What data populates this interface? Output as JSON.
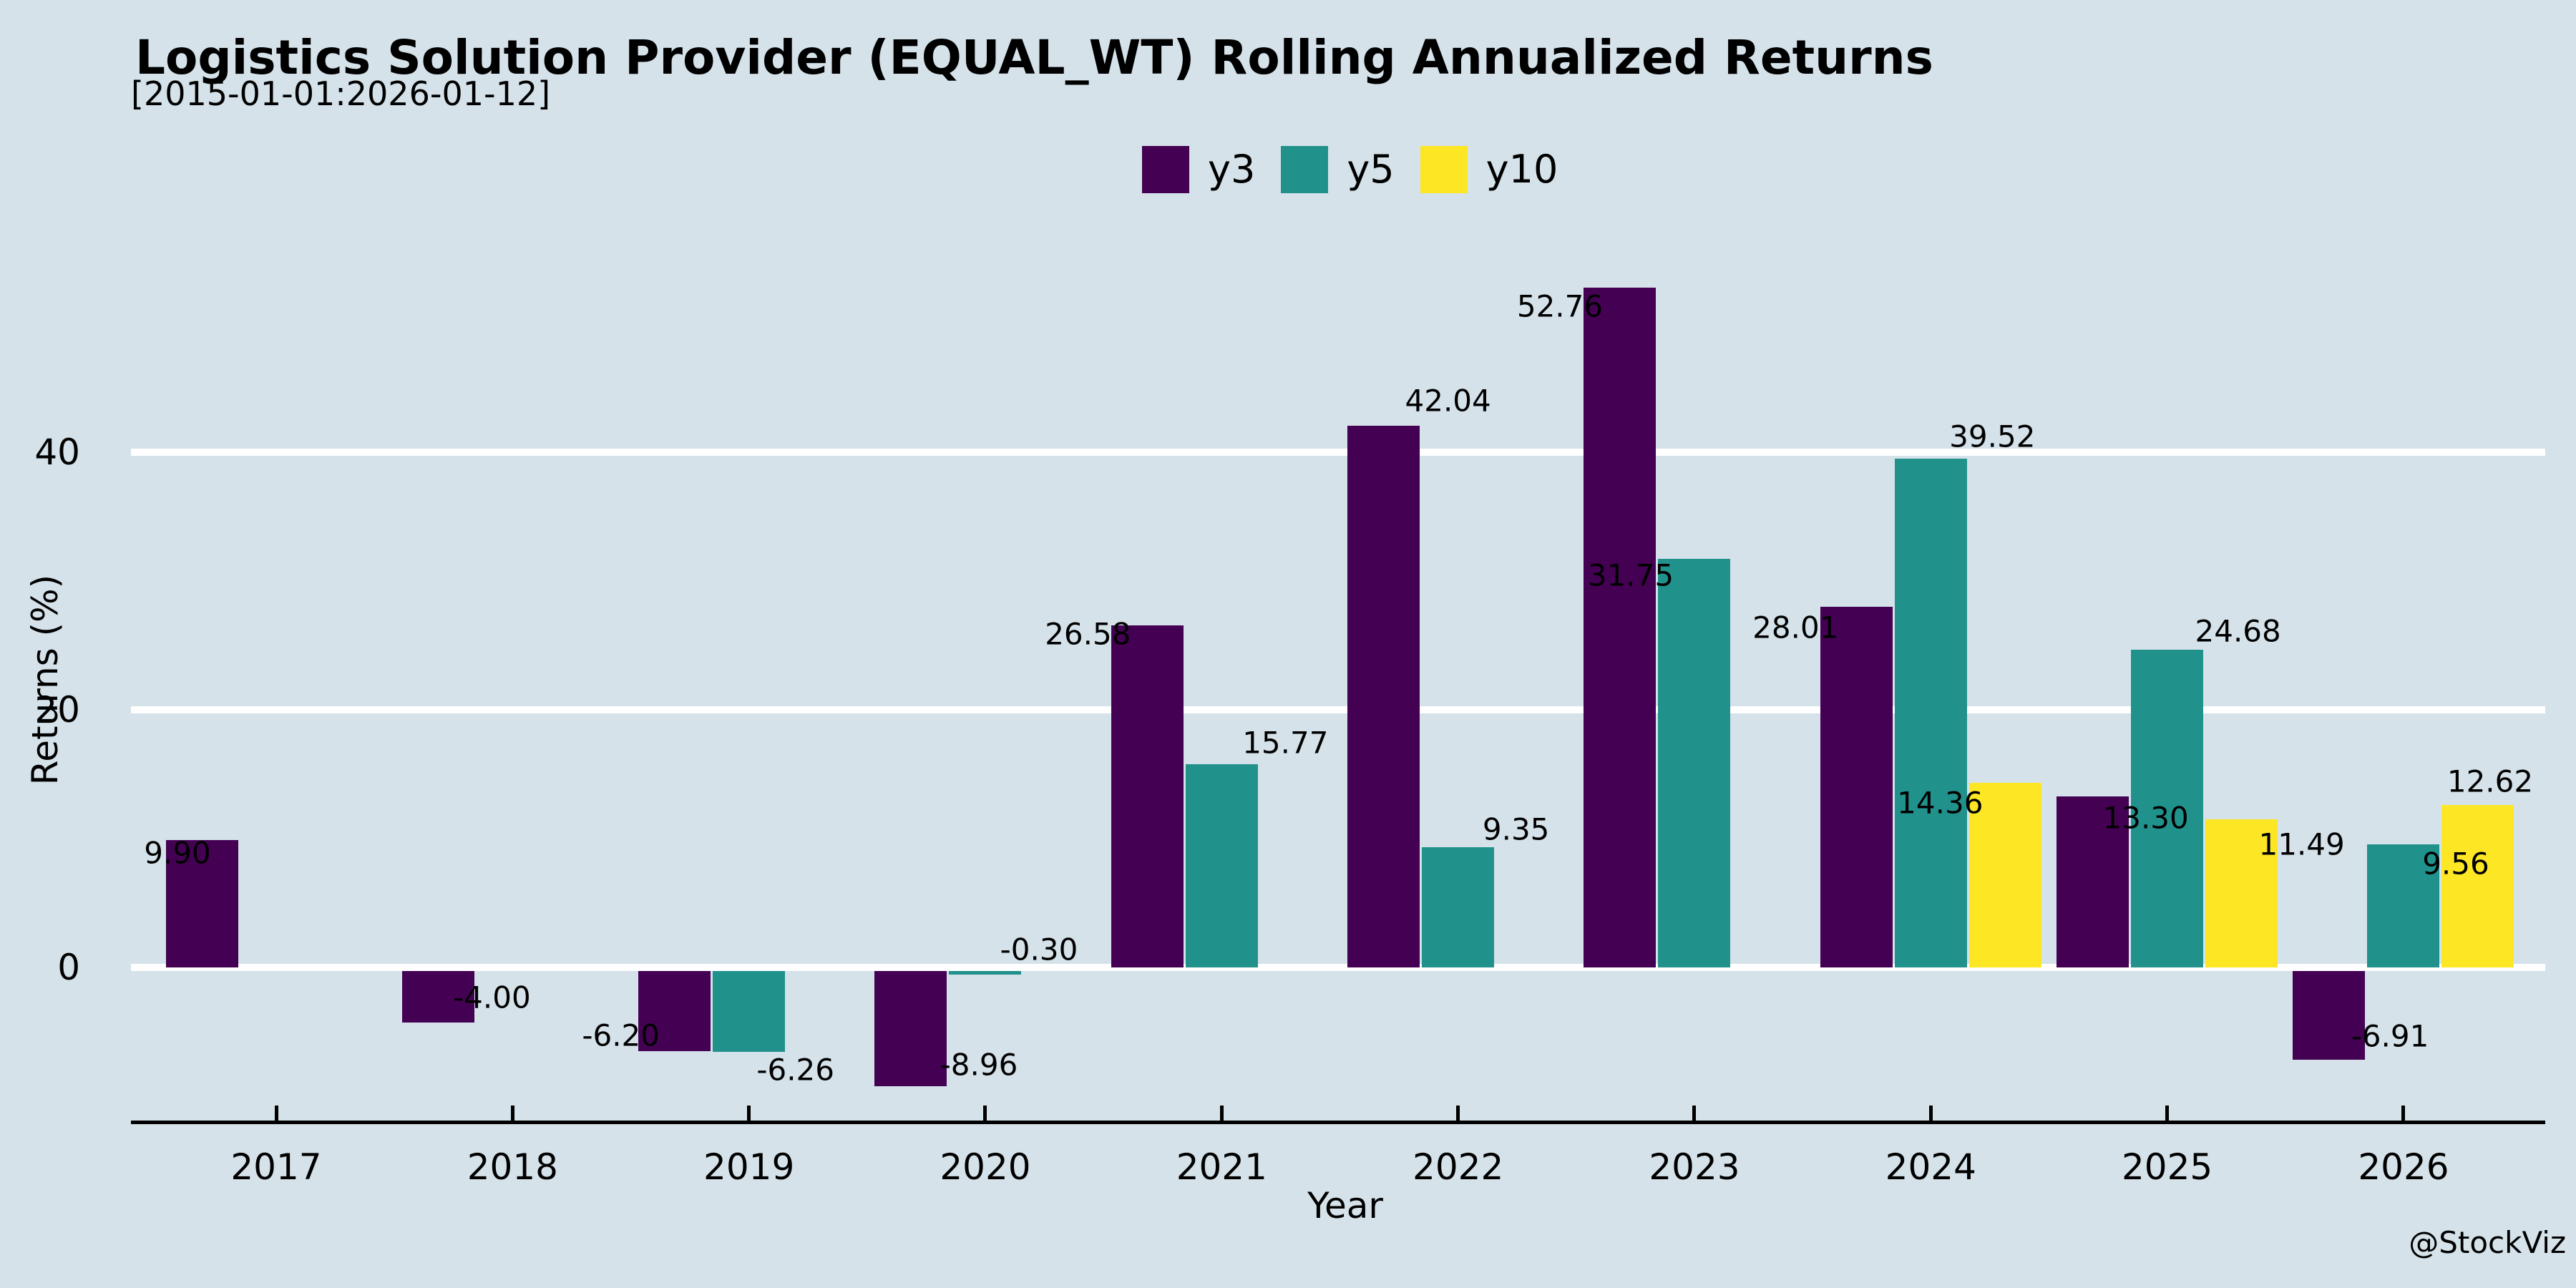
{
  "watermark": {
    "text": "@StockViz"
  },
  "style": {
    "background": "#d5e2e9",
    "gridline_color": "#ffffff",
    "axis_color": "#000000",
    "text_color": "#000000"
  },
  "chart_data": {
    "type": "bar",
    "title": "Logistics Solution Provider (EQUAL_WT) Rolling Annualized Returns",
    "subtitle": "[2015-01-01:2026-01-12]",
    "xlabel": "Year",
    "ylabel": "Returns (%)",
    "categories": [
      "2017",
      "2018",
      "2019",
      "2020",
      "2021",
      "2022",
      "2023",
      "2024",
      "2025",
      "2026"
    ],
    "series": [
      {
        "name": "y3",
        "color": "#440154",
        "values": [
          9.9,
          -4.0,
          -6.2,
          -8.96,
          26.58,
          42.04,
          52.76,
          28.01,
          13.3,
          -6.91
        ],
        "label_dx": [
          -34,
          75,
          -75,
          95,
          -83,
          90,
          -84,
          -85,
          74,
          85
        ],
        "label_dy": [
          18,
          -35,
          -22,
          -30,
          12,
          -35,
          26,
          29,
          30,
          -33
        ]
      },
      {
        "name": "y5",
        "color": "#21918c",
        "values": [
          null,
          null,
          -6.26,
          -0.3,
          15.77,
          9.35,
          31.75,
          39.52,
          24.68,
          9.56
        ],
        "label_dx": [
          null,
          null,
          65,
          75,
          89,
          81,
          -89,
          86,
          99,
          73
        ],
        "label_dy": [
          null,
          null,
          25,
          -35,
          -30,
          -25,
          23,
          -31,
          -26,
          27
        ]
      },
      {
        "name": "y10",
        "color": "#fde725",
        "values": [
          null,
          null,
          null,
          null,
          null,
          null,
          null,
          14.36,
          11.49,
          12.62
        ],
        "label_dx": [
          null,
          null,
          null,
          null,
          null,
          null,
          null,
          -91,
          84,
          17
        ],
        "label_dy": [
          null,
          null,
          null,
          null,
          null,
          null,
          null,
          28,
          35,
          -33
        ]
      }
    ],
    "yticks": [
      0,
      20,
      40
    ],
    "ylim": [
      -12,
      57
    ],
    "grid": "horizontal-white",
    "legend_position": "top-center",
    "value_labels": "every bar, 2 decimals"
  }
}
